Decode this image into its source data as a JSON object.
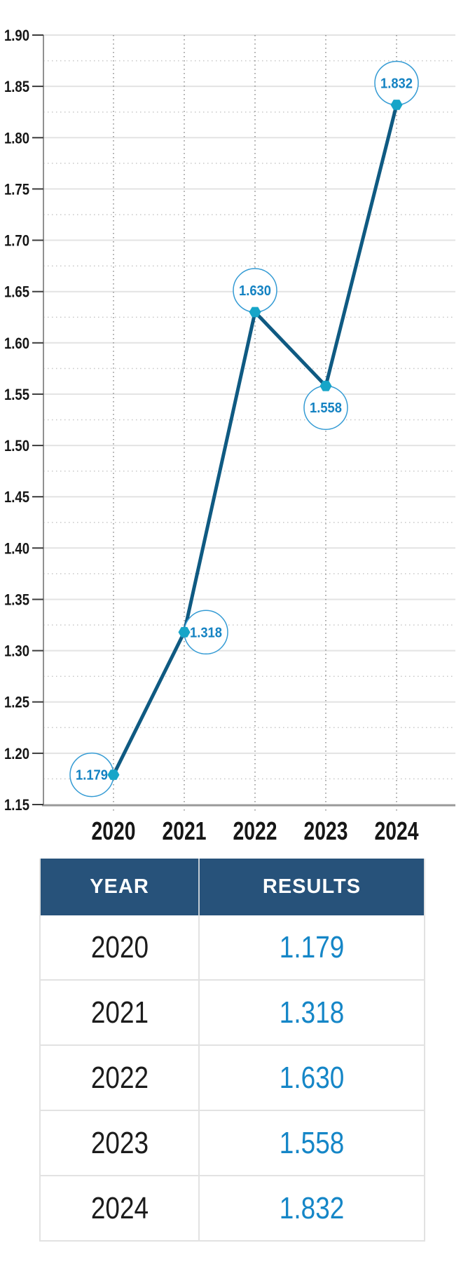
{
  "chart_data": {
    "type": "line",
    "title": "",
    "xlabel": "",
    "ylabel": "",
    "categories": [
      "2020",
      "2021",
      "2022",
      "2023",
      "2024"
    ],
    "values": [
      1.179,
      1.318,
      1.63,
      1.558,
      1.832
    ],
    "point_labels": [
      "1.179",
      "1.318",
      "1.630",
      "1.558",
      "1.832"
    ],
    "label_positions": [
      "left",
      "right",
      "above",
      "below",
      "above"
    ],
    "ylim": [
      1.15,
      1.9
    ],
    "yticks": [
      "1.90",
      "1.85",
      "1.80",
      "1.75",
      "1.70",
      "1.65",
      "1.60",
      "1.55",
      "1.50",
      "1.45",
      "1.40",
      "1.35",
      "1.30",
      "1.25",
      "1.20",
      "1.15"
    ],
    "ytick_step": 0.05,
    "yminor_step": 0.025,
    "grid": true,
    "legend": false,
    "colors": {
      "line": "#0f5a82",
      "marker": "#16a5c8",
      "bubble_stroke": "#349bd4",
      "bubble_fill": "#ffffff",
      "bubble_text": "#1482c2",
      "major_grid": "#e3e3e3",
      "minor_grid": "#c8c8c8",
      "vertical_grid": "#8a8a8a",
      "axis": "#999999",
      "tick": "#3c3c3c",
      "axis_label": "#161616"
    }
  },
  "table": {
    "headers": [
      "YEAR",
      "RESULTS"
    ],
    "rows": [
      [
        "2020",
        "1.179"
      ],
      [
        "2021",
        "1.318"
      ],
      [
        "2022",
        "1.630"
      ],
      [
        "2023",
        "1.558"
      ],
      [
        "2024",
        "1.832"
      ]
    ]
  }
}
